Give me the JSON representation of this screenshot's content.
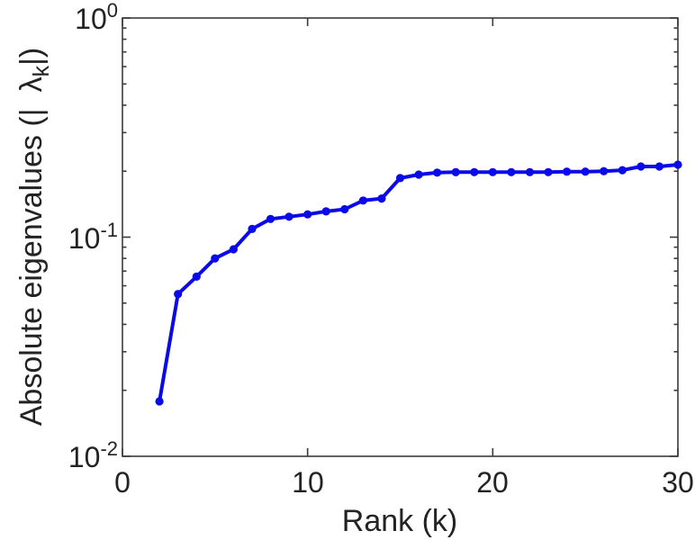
{
  "figure": {
    "background": "#ffffff",
    "axis_color": "#3b3b3b",
    "text_color": "#232323"
  },
  "chart_data": {
    "type": "line",
    "title": "",
    "xlabel": "Rank (k)",
    "ylabel": "Absolute eigenvalues (| λₖ |)",
    "ylabel_rich": {
      "prefix": "Absolute eigenvalues (|",
      "symbol": "λ",
      "subscript": "k",
      "suffix": "|)"
    },
    "xlim": [
      0,
      30
    ],
    "ylim": [
      0.01,
      1
    ],
    "yscale": "log",
    "grid": false,
    "legend": null,
    "box": true,
    "x_ticks": [
      0,
      10,
      20,
      30
    ],
    "x_tick_labels": [
      "0",
      "10",
      "20",
      "30"
    ],
    "y_ticks": [
      {
        "base": "10",
        "exp": "0",
        "value": 1
      },
      {
        "base": "10",
        "exp": "-1",
        "value": 0.1
      },
      {
        "base": "10",
        "exp": "-2",
        "value": 0.01
      }
    ],
    "line_color": "#0A0AE8",
    "marker": "circle",
    "x": [
      2,
      3,
      4,
      5,
      6,
      7,
      8,
      9,
      10,
      11,
      12,
      13,
      14,
      15,
      16,
      17,
      18,
      19,
      20,
      21,
      22,
      23,
      24,
      25,
      26,
      27,
      28,
      29,
      30
    ],
    "y": [
      0.0178,
      0.055,
      0.066,
      0.08,
      0.088,
      0.109,
      0.121,
      0.124,
      0.127,
      0.131,
      0.134,
      0.147,
      0.15,
      0.186,
      0.193,
      0.197,
      0.198,
      0.198,
      0.198,
      0.198,
      0.198,
      0.198,
      0.199,
      0.199,
      0.2,
      0.202,
      0.21,
      0.21,
      0.214
    ]
  }
}
